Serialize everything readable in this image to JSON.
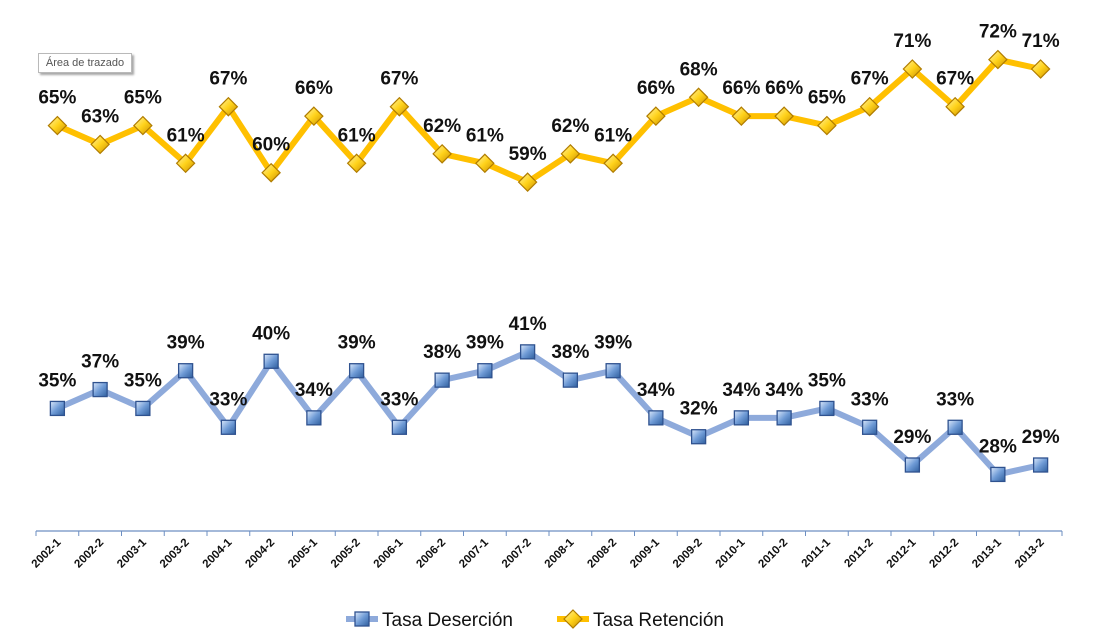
{
  "plot_area_tooltip": "Área de trazado",
  "chart_data": {
    "type": "line",
    "categories": [
      "2002-1",
      "2002-2",
      "2003-1",
      "2003-2",
      "2004-1",
      "2004-2",
      "2005-1",
      "2005-2",
      "2006-1",
      "2006-2",
      "2007-1",
      "2007-2",
      "2008-1",
      "2008-2",
      "2009-1",
      "2009-2",
      "2010-1",
      "2010-2",
      "2011-1",
      "2011-2",
      "2012-1",
      "2012-2",
      "2013-1",
      "2013-2"
    ],
    "series": [
      {
        "name": "Tasa Deserción",
        "color": "#8EAADB",
        "marker": "square",
        "values": [
          35,
          37,
          35,
          39,
          33,
          40,
          34,
          39,
          33,
          38,
          39,
          41,
          38,
          39,
          34,
          32,
          34,
          34,
          35,
          33,
          29,
          33,
          28,
          29
        ],
        "labels": [
          "35%",
          "37%",
          "35%",
          "39%",
          "33%",
          "40%",
          "34%",
          "39%",
          "33%",
          "38%",
          "39%",
          "41%",
          "38%",
          "39%",
          "34%",
          "32%",
          "34%",
          "34%",
          "35%",
          "33%",
          "29%",
          "33%",
          "28%",
          "29%"
        ]
      },
      {
        "name": "Tasa Retención",
        "color": "#FFC000",
        "marker": "diamond",
        "values": [
          65,
          63,
          65,
          61,
          67,
          60,
          66,
          61,
          67,
          62,
          61,
          59,
          62,
          61,
          66,
          68,
          66,
          66,
          65,
          67,
          71,
          67,
          72,
          71
        ],
        "labels": [
          "65%",
          "63%",
          "65%",
          "61%",
          "67%",
          "60%",
          "66%",
          "61%",
          "67%",
          "62%",
          "61%",
          "59%",
          "62%",
          "61%",
          "66%",
          "68%",
          "66%",
          "66%",
          "65%",
          "67%",
          "71%",
          "67%",
          "72%",
          "71%"
        ]
      }
    ],
    "xlabel": "",
    "ylabel": "",
    "ylim": [
      22,
      78
    ],
    "gridlines": false,
    "legend": "bottom-center"
  }
}
